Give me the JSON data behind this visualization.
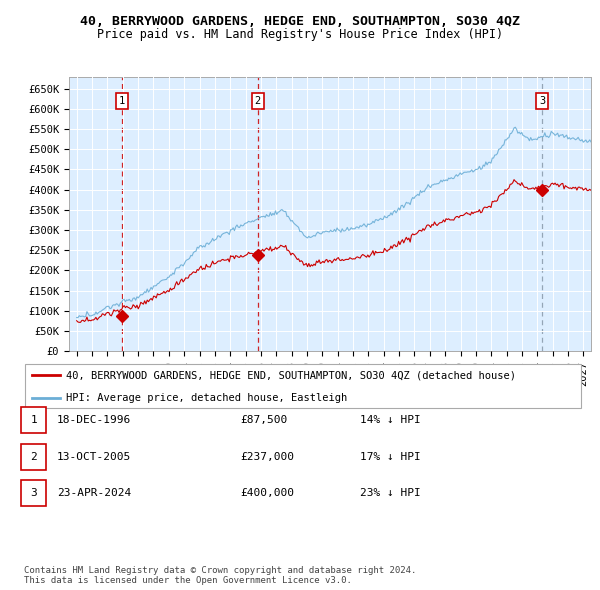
{
  "title": "40, BERRYWOOD GARDENS, HEDGE END, SOUTHAMPTON, SO30 4QZ",
  "subtitle": "Price paid vs. HM Land Registry's House Price Index (HPI)",
  "ylabel_ticks": [
    "£0",
    "£50K",
    "£100K",
    "£150K",
    "£200K",
    "£250K",
    "£300K",
    "£350K",
    "£400K",
    "£450K",
    "£500K",
    "£550K",
    "£600K",
    "£650K"
  ],
  "ytick_values": [
    0,
    50000,
    100000,
    150000,
    200000,
    250000,
    300000,
    350000,
    400000,
    450000,
    500000,
    550000,
    600000,
    650000
  ],
  "ylim": [
    0,
    680000
  ],
  "xlim_start": 1993.5,
  "xlim_end": 2027.5,
  "hpi_color": "#6baed6",
  "price_color": "#cc0000",
  "bg_color": "#ddeeff",
  "grid_color": "#ffffff",
  "purchase_dates": [
    1996.96,
    2005.79,
    2024.31
  ],
  "purchase_prices": [
    87500,
    237000,
    400000
  ],
  "purchase_labels": [
    "1",
    "2",
    "3"
  ],
  "vline_colors": [
    "#cc0000",
    "#cc0000",
    "#8899aa"
  ],
  "vline_styles": [
    "--",
    "--",
    "--"
  ],
  "legend_property_label": "40, BERRYWOOD GARDENS, HEDGE END, SOUTHAMPTON, SO30 4QZ (detached house)",
  "legend_hpi_label": "HPI: Average price, detached house, Eastleigh",
  "table_rows": [
    {
      "num": "1",
      "date": "18-DEC-1996",
      "price": "£87,500",
      "hpi": "14% ↓ HPI"
    },
    {
      "num": "2",
      "date": "13-OCT-2005",
      "price": "£237,000",
      "hpi": "17% ↓ HPI"
    },
    {
      "num": "3",
      "date": "23-APR-2024",
      "price": "£400,000",
      "hpi": "23% ↓ HPI"
    }
  ],
  "footnote": "Contains HM Land Registry data © Crown copyright and database right 2024.\nThis data is licensed under the Open Government Licence v3.0.",
  "title_fontsize": 9.5,
  "subtitle_fontsize": 8.5,
  "tick_fontsize": 7.5,
  "legend_fontsize": 7.5,
  "table_fontsize": 8.0,
  "footnote_fontsize": 6.5
}
